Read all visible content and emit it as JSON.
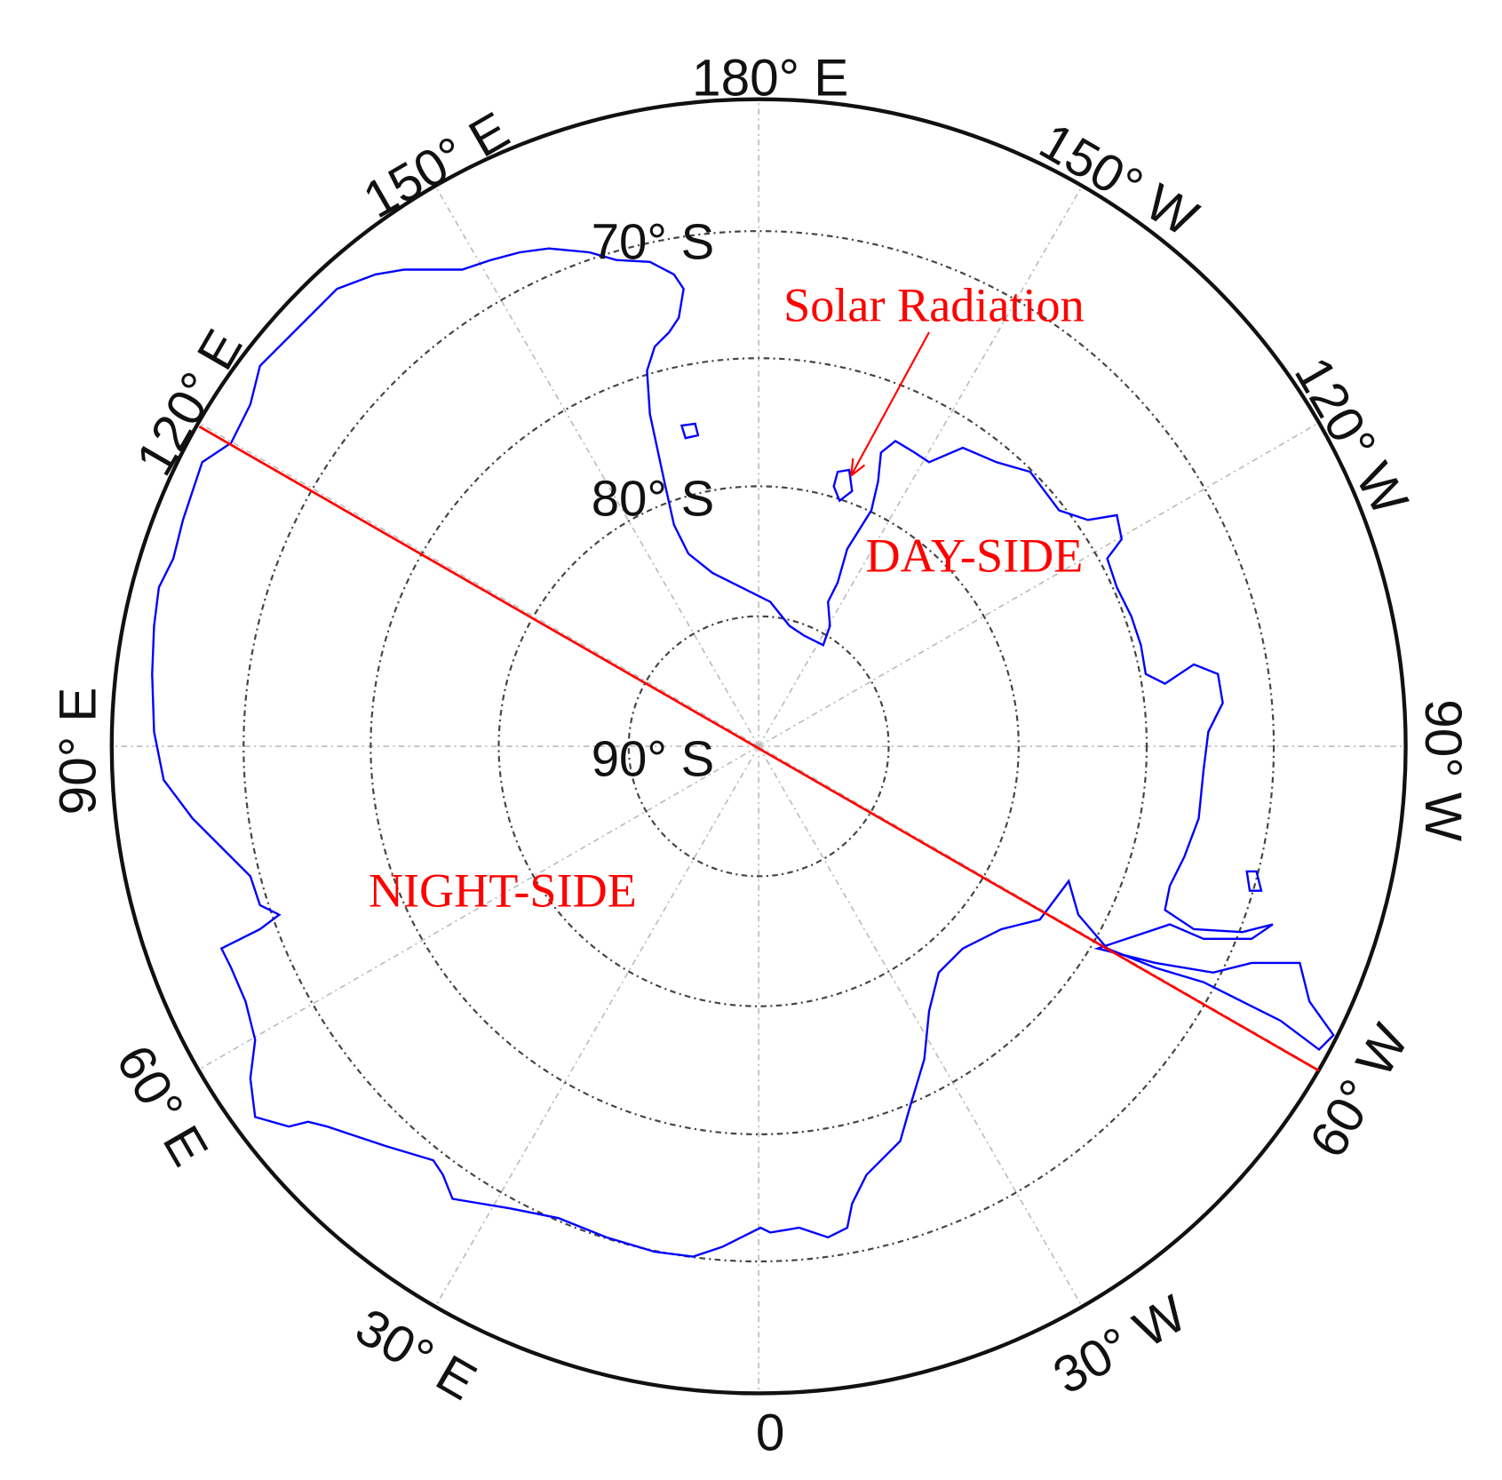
{
  "map": {
    "longitude_labels": [
      "180° E",
      "150° E",
      "120° E",
      "90° E",
      "60° E",
      "30° E",
      "0",
      "30° W",
      "60° W",
      "90° W",
      "120° W",
      "150° W"
    ],
    "latitude_labels": [
      "70° S",
      "80° S",
      "90° S"
    ],
    "annotations": {
      "solar_radiation": "Solar Radiation",
      "day_side": "DAY-SIDE",
      "night_side": "NIGHT-SIDE"
    }
  }
}
